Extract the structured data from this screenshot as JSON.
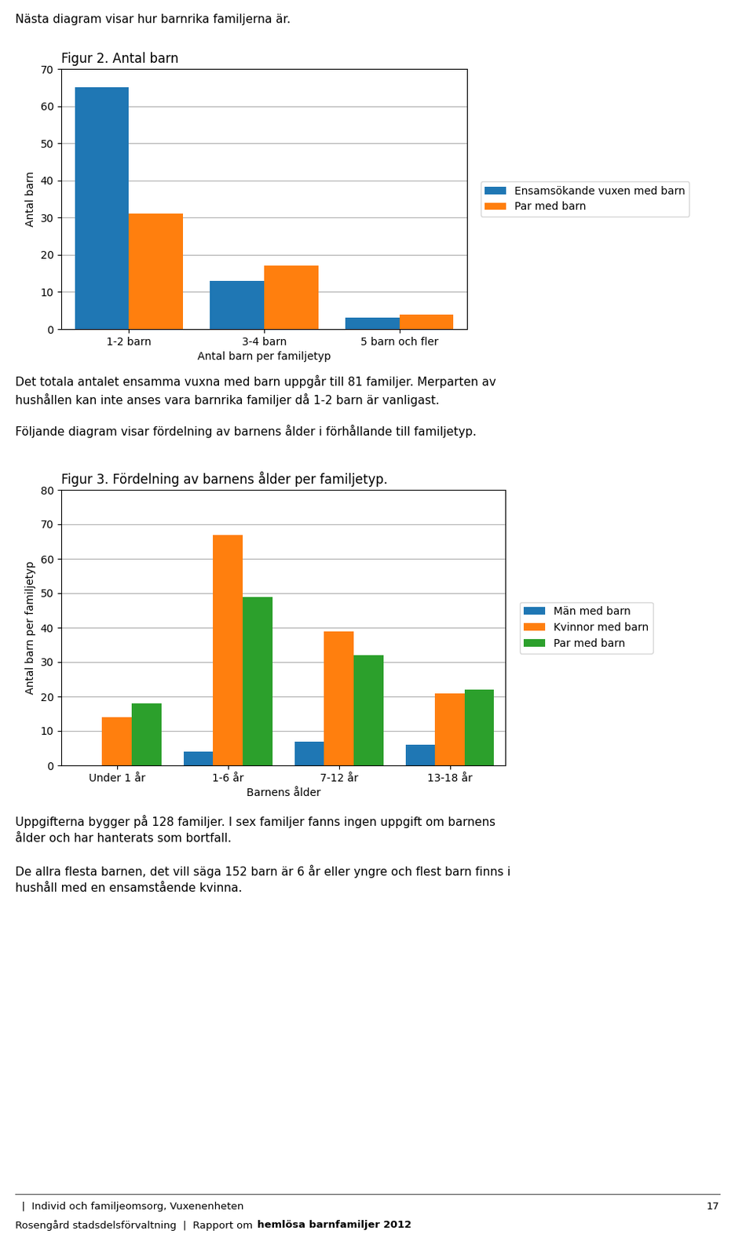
{
  "page": {
    "intro": "Nästa diagram visar hur barnrika familjerna är.",
    "between": [
      "Det totala antalet ensamma vuxna med barn uppgår till 81 familjer. Merparten av\nhushållen kan inte anses vara barnrika familjer då 1-2 barn är vanligast.",
      "Följande diagram visar fördelning av barnens ålder i förhållande till familjetyp."
    ],
    "after": [
      "Uppgifterna bygger på 128 familjer. I sex familjer fanns ingen uppgift om barnens\nålder och har hanterats som bortfall.",
      "De allra flesta barnen, det vill säga 152 barn är 6 år eller yngre och flest barn finns i\nhushåll med en ensamstående kvinna."
    ],
    "footer_left": "  |  Individ och familjeomsorg, Vuxenenheten",
    "footer_right": "17",
    "footer_line2": "Rosengård stadsdelsförvaltning  |  Rapport om ",
    "footer_line2_bold": "hemlösa barnfamiljer 2012"
  },
  "chart_data": [
    {
      "type": "bar",
      "title": "Figur 2. Antal barn",
      "x_label": "Antal barn per familjetyp",
      "y_label": "Antal barn",
      "categories": [
        "1-2 barn",
        "3-4 barn",
        "5 barn och fler"
      ],
      "series": [
        {
          "name": "Ensamsökande vuxen med barn",
          "values": [
            65,
            13,
            3
          ]
        },
        {
          "name": "Par med barn",
          "values": [
            31,
            17,
            4
          ]
        }
      ],
      "ylim": [
        0,
        70
      ],
      "yticks": [
        0,
        10,
        20,
        30,
        40,
        50,
        60,
        70
      ],
      "grid": true,
      "legend": "center left"
    },
    {
      "type": "bar",
      "title": "Figur 3. Fördelning av barnens ålder per familjetyp.",
      "x_label": "Barnens ålder",
      "y_label": "Antal barn per familjetyp",
      "categories": [
        "Under 1 år",
        "1-6 år",
        "7-12 år",
        "13-18 år"
      ],
      "series": [
        {
          "name": "Män med barn",
          "values": [
            0,
            4,
            7,
            6
          ]
        },
        {
          "name": "Kvinnor med barn",
          "values": [
            14,
            67,
            39,
            21
          ]
        },
        {
          "name": "Par med barn",
          "values": [
            18,
            49,
            32,
            22
          ]
        }
      ],
      "ylim": [
        0,
        80
      ],
      "yticks": [
        0,
        10,
        20,
        30,
        40,
        50,
        60,
        70,
        80
      ],
      "grid": true,
      "legend": "center left"
    }
  ]
}
